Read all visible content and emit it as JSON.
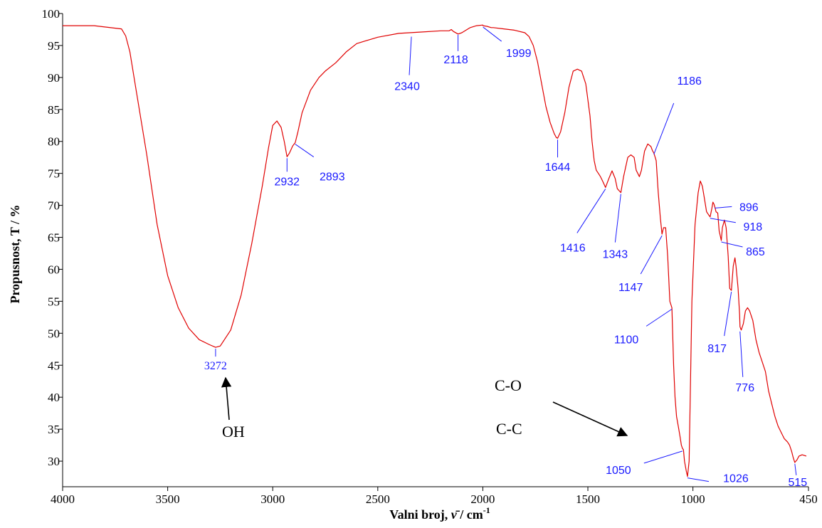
{
  "chart_data": {
    "type": "line",
    "title": "",
    "xlabel": "Valni broj,",
    "xlabel_symbol": "ν̄",
    "xlabel_unit": " / cm",
    "xlabel_sup": "-1",
    "ylabel": "Propusnost, T / %",
    "xlim": [
      4000,
      450
    ],
    "ylim": [
      26,
      100
    ],
    "x_ticks": [
      4000,
      3500,
      3000,
      2500,
      2000,
      1500,
      1000,
      450
    ],
    "y_ticks": [
      30,
      35,
      40,
      45,
      50,
      55,
      60,
      65,
      70,
      75,
      80,
      85,
      90,
      95,
      100
    ],
    "grid": false,
    "line_color": "#e00000",
    "series": [
      {
        "x": [
          4000,
          3850,
          3720,
          3700,
          3680,
          3650,
          3600,
          3550,
          3500,
          3450,
          3400,
          3350,
          3300,
          3272,
          3250,
          3200,
          3150,
          3100,
          3050,
          3020,
          3000,
          2980,
          2960,
          2945,
          2932,
          2920,
          2905,
          2893,
          2880,
          2860,
          2820,
          2780,
          2750,
          2700,
          2650,
          2600,
          2500,
          2400,
          2300,
          2200,
          2160,
          2150,
          2140,
          2118,
          2100,
          2080,
          2060,
          2030,
          2000,
          1999,
          1980,
          1960,
          1950,
          1900,
          1850,
          1800,
          1780,
          1760,
          1740,
          1720,
          1700,
          1680,
          1660,
          1650,
          1644,
          1630,
          1610,
          1590,
          1570,
          1550,
          1530,
          1510,
          1490,
          1480,
          1470,
          1460,
          1450,
          1440,
          1430,
          1416,
          1400,
          1385,
          1370,
          1360,
          1343,
          1330,
          1310,
          1295,
          1280,
          1270,
          1255,
          1245,
          1230,
          1215,
          1200,
          1192,
          1186,
          1175,
          1165,
          1155,
          1147,
          1140,
          1130,
          1120,
          1110,
          1100,
          1092,
          1085,
          1078,
          1070,
          1062,
          1055,
          1050,
          1045,
          1040,
          1032,
          1026,
          1018,
          1005,
          990,
          975,
          965,
          955,
          945,
          935,
          925,
          918,
          910,
          905,
          900,
          896,
          890,
          882,
          875,
          865,
          860,
          850,
          842,
          832,
          825,
          817,
          808,
          800,
          795,
          785,
          778,
          776,
          770,
          760,
          750,
          740,
          730,
          715,
          700,
          685,
          670,
          655,
          640,
          625,
          610,
          595,
          580,
          565,
          550,
          540,
          530,
          522,
          515,
          505,
          495,
          480,
          460
        ],
        "y": [
          98.1,
          98.1,
          97.6,
          96.5,
          94,
          88,
          78,
          67,
          59,
          54,
          50.8,
          49,
          48.2,
          47.8,
          48,
          50.5,
          56,
          64,
          73,
          79,
          82.5,
          83.2,
          82.2,
          80,
          77.6,
          78.2,
          79.3,
          79.8,
          81.5,
          84.5,
          88,
          90,
          91,
          92.3,
          94,
          95.3,
          96.3,
          96.9,
          97.1,
          97.3,
          97.3,
          97.5,
          97.2,
          96.8,
          97,
          97.4,
          97.8,
          98.1,
          98.2,
          98.1,
          98,
          97.8,
          97.8,
          97.6,
          97.4,
          97,
          96.4,
          95,
          92.5,
          89,
          85.5,
          83,
          81.2,
          80.6,
          80.5,
          81.5,
          84.5,
          88.5,
          91,
          91.3,
          91,
          89,
          84,
          80,
          77,
          75.5,
          75,
          74.5,
          73.8,
          72.8,
          74.2,
          75.4,
          74.2,
          72.6,
          72,
          74.5,
          77.5,
          77.9,
          77.5,
          75.5,
          74.5,
          75.5,
          78.5,
          79.6,
          79.2,
          78.5,
          78.2,
          77,
          72,
          68,
          65.5,
          66.5,
          66.5,
          62,
          55,
          54,
          45,
          40,
          37,
          35.5,
          34,
          32.5,
          32,
          31.8,
          30,
          28.5,
          27.6,
          30,
          55,
          67,
          72,
          73.8,
          73,
          71,
          69,
          68.5,
          68.2,
          69.5,
          70.5,
          70.2,
          69.8,
          69,
          68.8,
          66,
          64.5,
          66.5,
          67.7,
          66.5,
          62,
          57,
          56.7,
          60.5,
          61.8,
          60.5,
          57,
          53,
          51,
          50.5,
          51.5,
          53.5,
          54,
          53.5,
          52,
          49,
          47,
          45.5,
          44,
          41,
          39,
          37,
          35.5,
          34.5,
          33.5,
          33,
          32.5,
          31.5,
          30.5,
          29.8,
          30.2,
          30.8,
          31,
          30.8
        ]
      }
    ],
    "peak_labels": [
      {
        "text": "3272",
        "x": 3272,
        "y": 47.8
      },
      {
        "text": "2932",
        "x": 2932,
        "y": 77.6
      },
      {
        "text": "2893",
        "x": 2893,
        "y": 79.8
      },
      {
        "text": "2118",
        "x": 2118,
        "y": 96.9
      },
      {
        "text": "2340",
        "x": 2340,
        "y": 96.6
      },
      {
        "text": "1999",
        "x": 1999,
        "y": 98.1
      },
      {
        "text": "1644",
        "x": 1644,
        "y": 80.5
      },
      {
        "text": "1416",
        "x": 1416,
        "y": 72.8
      },
      {
        "text": "1343",
        "x": 1343,
        "y": 72.0
      },
      {
        "text": "1186",
        "x": 1186,
        "y": 78.2
      },
      {
        "text": "1147",
        "x": 1147,
        "y": 65.5
      },
      {
        "text": "1100",
        "x": 1100,
        "y": 54.0
      },
      {
        "text": "1050",
        "x": 1050,
        "y": 31.8
      },
      {
        "text": "1026",
        "x": 1026,
        "y": 27.6
      },
      {
        "text": "896",
        "x": 896,
        "y": 69.8
      },
      {
        "text": "918",
        "x": 918,
        "y": 68.2
      },
      {
        "text": "865",
        "x": 865,
        "y": 64.5
      },
      {
        "text": "817",
        "x": 817,
        "y": 56.7
      },
      {
        "text": "776",
        "x": 776,
        "y": 50.5
      },
      {
        "text": "515",
        "x": 515,
        "y": 29.8
      }
    ],
    "annotations": [
      {
        "text": "OH",
        "x": 3272,
        "y": 47.8
      },
      {
        "text": "C-O",
        "x": 1050,
        "y": 31.8
      },
      {
        "text": "C-C",
        "x": 1050,
        "y": 31.8
      }
    ]
  }
}
